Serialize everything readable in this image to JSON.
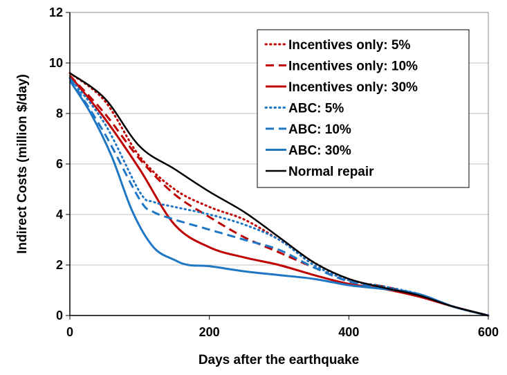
{
  "chart_data": {
    "type": "line",
    "title": "",
    "xlabel": "Days after the earthquake",
    "ylabel": "Indirect Costs (million $/day)",
    "xlim": [
      0,
      600
    ],
    "ylim": [
      0,
      12
    ],
    "xticks": [
      0,
      200,
      400,
      600
    ],
    "yticks": [
      0,
      2,
      4,
      6,
      8,
      10,
      12
    ],
    "grid": "horizontal",
    "legend_position": "top-right",
    "series": [
      {
        "name": "Incentives only: 5%",
        "color": "#c00000",
        "dash": "dotted",
        "x": [
          0,
          50,
          100,
          150,
          200,
          250,
          300,
          350,
          400,
          450,
          500,
          550,
          600
        ],
        "y": [
          9.6,
          8.5,
          6.3,
          5.0,
          4.3,
          3.8,
          3.0,
          2.1,
          1.4,
          1.15,
          0.8,
          0.35,
          0.0
        ]
      },
      {
        "name": "Incentives only: 10%",
        "color": "#c00000",
        "dash": "dashed",
        "x": [
          0,
          50,
          100,
          150,
          200,
          250,
          300,
          350,
          400,
          450,
          500,
          550,
          600
        ],
        "y": [
          9.5,
          8.0,
          6.2,
          4.8,
          3.9,
          3.1,
          2.5,
          1.9,
          1.35,
          1.15,
          0.8,
          0.35,
          0.0
        ]
      },
      {
        "name": "Incentives only: 30%",
        "color": "#c00000",
        "dash": "solid",
        "x": [
          0,
          50,
          100,
          150,
          200,
          250,
          300,
          350,
          400,
          450,
          500,
          550,
          600
        ],
        "y": [
          9.5,
          7.8,
          5.8,
          3.6,
          2.7,
          2.3,
          2.0,
          1.6,
          1.25,
          1.05,
          0.75,
          0.35,
          0.0
        ]
      },
      {
        "name": "ABC: 5%",
        "color": "#1f77c4",
        "dash": "dotted",
        "x": [
          0,
          50,
          100,
          120,
          150,
          200,
          250,
          300,
          350,
          400,
          450,
          500,
          550,
          600
        ],
        "y": [
          9.4,
          7.6,
          4.9,
          4.5,
          4.3,
          4.0,
          3.6,
          3.0,
          2.0,
          1.4,
          1.15,
          0.85,
          0.35,
          0.0
        ]
      },
      {
        "name": "ABC: 10%",
        "color": "#1f77c4",
        "dash": "dashed",
        "x": [
          0,
          50,
          100,
          120,
          150,
          200,
          250,
          300,
          350,
          400,
          450,
          500,
          550,
          600
        ],
        "y": [
          9.4,
          7.2,
          4.6,
          4.1,
          3.8,
          3.4,
          3.0,
          2.6,
          1.9,
          1.35,
          1.1,
          0.85,
          0.35,
          0.0
        ]
      },
      {
        "name": "ABC: 30%",
        "color": "#1f77c4",
        "dash": "solid",
        "x": [
          0,
          30,
          60,
          90,
          120,
          150,
          170,
          200,
          250,
          300,
          350,
          400,
          450,
          500,
          550,
          600
        ],
        "y": [
          9.3,
          8.0,
          6.3,
          4.1,
          2.7,
          2.2,
          2.0,
          1.95,
          1.75,
          1.6,
          1.45,
          1.2,
          1.05,
          0.85,
          0.35,
          0.0
        ]
      },
      {
        "name": "Normal repair",
        "color": "#000000",
        "dash": "solid",
        "thin": true,
        "x": [
          0,
          50,
          100,
          150,
          200,
          250,
          300,
          350,
          400,
          450,
          500,
          550,
          600
        ],
        "y": [
          9.6,
          8.6,
          6.7,
          5.8,
          4.9,
          4.1,
          3.1,
          2.1,
          1.45,
          1.1,
          0.8,
          0.35,
          0.0
        ]
      }
    ]
  }
}
